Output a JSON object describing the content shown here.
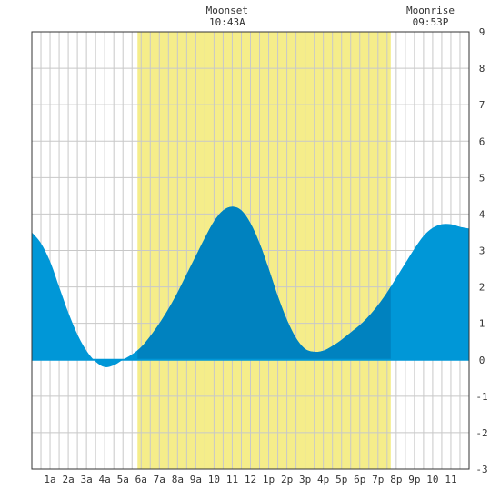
{
  "chart_data": {
    "type": "area",
    "x_tick_labels": [
      "1a",
      "2a",
      "3a",
      "4a",
      "5a",
      "6a",
      "7a",
      "8a",
      "9a",
      "10",
      "11",
      "12",
      "1p",
      "2p",
      "3p",
      "4p",
      "5p",
      "6p",
      "7p",
      "8p",
      "9p",
      "10",
      "11"
    ],
    "y_tick_labels": [
      "9",
      "8",
      "7",
      "6",
      "5",
      "4",
      "3",
      "2",
      "1",
      "0",
      "-1",
      "-2",
      "-3"
    ],
    "ylim": [
      -3,
      9
    ],
    "xlim_hours": [
      0,
      24
    ],
    "grid": true,
    "daylight_hours": [
      5.8,
      19.7
    ],
    "annotations": [
      {
        "label": "Moonset",
        "time": "10:43A",
        "hour": 10.72
      },
      {
        "label": "Moonrise",
        "time": "09:53P",
        "hour": 21.88
      }
    ],
    "tide_curve": {
      "x_hours": [
        0,
        0.5,
        1,
        1.5,
        2,
        2.5,
        3,
        3.5,
        4,
        4.5,
        5,
        5.5,
        6,
        6.5,
        7,
        7.5,
        8,
        8.5,
        9,
        9.5,
        10,
        10.5,
        11,
        11.5,
        12,
        12.5,
        13,
        13.5,
        14,
        14.5,
        15,
        15.5,
        16,
        16.5,
        17,
        17.5,
        18,
        18.5,
        19,
        19.5,
        20,
        20.5,
        21,
        21.5,
        22,
        22.5,
        23,
        23.5,
        24
      ],
      "y_feet": [
        3.5,
        3.2,
        2.7,
        2.0,
        1.3,
        0.7,
        0.25,
        -0.05,
        -0.2,
        -0.15,
        0.0,
        0.15,
        0.35,
        0.65,
        1.0,
        1.4,
        1.85,
        2.35,
        2.85,
        3.35,
        3.8,
        4.1,
        4.2,
        4.1,
        3.75,
        3.2,
        2.5,
        1.75,
        1.1,
        0.6,
        0.3,
        0.22,
        0.25,
        0.38,
        0.55,
        0.75,
        0.95,
        1.2,
        1.5,
        1.85,
        2.25,
        2.65,
        3.05,
        3.4,
        3.62,
        3.72,
        3.72,
        3.65,
        3.6
      ]
    },
    "colors": {
      "daylight": "#f5ed8a",
      "tide": "#0097d7",
      "tide_dark": "#0082bf",
      "grid": "#c8c8c8",
      "axis": "#333333"
    }
  }
}
